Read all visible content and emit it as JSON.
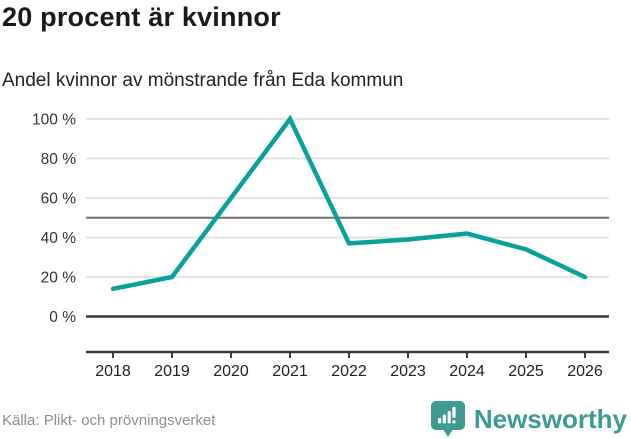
{
  "header": {
    "title": "20 procent är kvinnor",
    "subtitle": "Andel kvinnor av mönstrande från Eda kommun"
  },
  "chart_data": {
    "type": "line",
    "title": "20 procent är kvinnor",
    "subtitle": "Andel kvinnor av mönstrande från Eda kommun",
    "categories": [
      "2018",
      "2019",
      "2020",
      "2021",
      "2022",
      "2023",
      "2024",
      "2025",
      "2026"
    ],
    "series": [
      {
        "name": "Andel kvinnor av mönstrande",
        "values": [
          14,
          20,
          60,
          100,
          37,
          39,
          42,
          34,
          20
        ]
      }
    ],
    "unit": "%",
    "ylim": [
      0,
      100
    ],
    "y_ticks": [
      0,
      20,
      40,
      60,
      80,
      100
    ],
    "y_tick_labels": [
      "0 %",
      "20 %",
      "40 %",
      "60 %",
      "80 %",
      "100 %"
    ],
    "reference_line": 50,
    "grid": true,
    "legend": false
  },
  "footer": {
    "source": "Källa: Plikt- och prövningsverket",
    "brand": "Newsworthy"
  },
  "colors": {
    "line": "#09a29b",
    "brand": "#3e9b94",
    "grid_light": "#dcdcdc",
    "grid_reference": "#6f6f6f",
    "axis_dark": "#3a3a3a",
    "tick_text": "#333333",
    "muted_text": "#8f8f8f"
  }
}
